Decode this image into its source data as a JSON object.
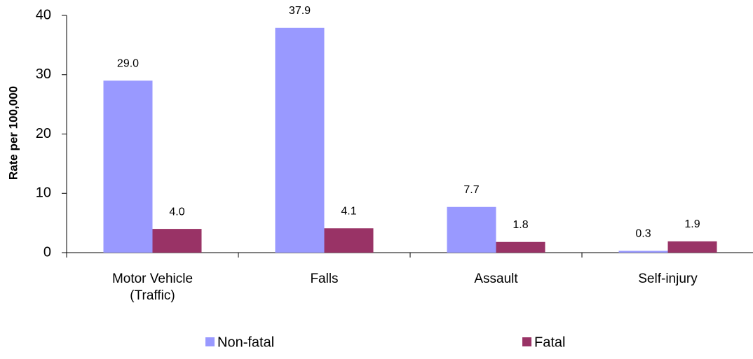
{
  "chart_data": {
    "type": "bar",
    "y_label": "Rate per 100,000",
    "categories": [
      "Motor Vehicle\n(Traffic)",
      "Falls",
      "Assault",
      "Self-injury"
    ],
    "series": [
      {
        "name": "Non-fatal",
        "color": "#9999ff",
        "values": [
          29.0,
          37.9,
          7.7,
          0.3
        ],
        "value_labels": [
          "29.0",
          "37.9",
          "7.7",
          "0.3"
        ]
      },
      {
        "name": "Fatal",
        "color": "#993366",
        "values": [
          4.0,
          4.1,
          1.8,
          1.9
        ],
        "value_labels": [
          "4.0",
          "4.1",
          "1.8",
          "1.9"
        ]
      }
    ],
    "ylim": [
      0,
      40
    ],
    "yticks": [
      0,
      10,
      20,
      30,
      40
    ],
    "grid": false,
    "legend": "bottom"
  }
}
